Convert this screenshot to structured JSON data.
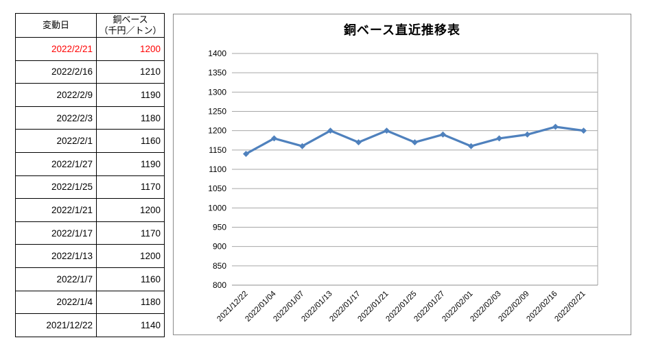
{
  "table": {
    "headers": {
      "date": "変動日",
      "price_line1": "銅ベース",
      "price_line2": "（千円／トン）"
    },
    "highlight_color": "#ff0000",
    "rows": [
      {
        "date": "2022/2/21",
        "value": "1200",
        "highlight": true
      },
      {
        "date": "2022/2/16",
        "value": "1210",
        "highlight": false
      },
      {
        "date": "2022/2/9",
        "value": "1190",
        "highlight": false
      },
      {
        "date": "2022/2/3",
        "value": "1180",
        "highlight": false
      },
      {
        "date": "2022/2/1",
        "value": "1160",
        "highlight": false
      },
      {
        "date": "2022/1/27",
        "value": "1190",
        "highlight": false
      },
      {
        "date": "2022/1/25",
        "value": "1170",
        "highlight": false
      },
      {
        "date": "2022/1/21",
        "value": "1200",
        "highlight": false
      },
      {
        "date": "2022/1/17",
        "value": "1170",
        "highlight": false
      },
      {
        "date": "2022/1/13",
        "value": "1200",
        "highlight": false
      },
      {
        "date": "2022/1/7",
        "value": "1160",
        "highlight": false
      },
      {
        "date": "2022/1/4",
        "value": "1180",
        "highlight": false
      },
      {
        "date": "2021/12/22",
        "value": "1140",
        "highlight": false
      }
    ]
  },
  "chart_data": {
    "type": "line",
    "title": "銅ベース直近推移表",
    "categories": [
      "2021/12/22",
      "2022/01/04",
      "2022/01/07",
      "2022/01/13",
      "2022/01/17",
      "2022/01/21",
      "2022/01/25",
      "2022/01/27",
      "2022/02/01",
      "2022/02/03",
      "2022/02/09",
      "2022/02/16",
      "2022/02/21"
    ],
    "values": [
      1140,
      1180,
      1160,
      1200,
      1170,
      1200,
      1170,
      1190,
      1160,
      1180,
      1190,
      1210,
      1200
    ],
    "xlabel": "",
    "ylabel": "",
    "ylim": [
      800,
      1400
    ],
    "ytick_step": 50,
    "grid": true,
    "legend": "none",
    "marker": "diamond",
    "x_tick_rotation": -45,
    "line_color": "#4f81bd",
    "gridline_color": "#a6a6a6",
    "axis_color": "#8c8c8c",
    "border_color": "#8a8a8a"
  }
}
